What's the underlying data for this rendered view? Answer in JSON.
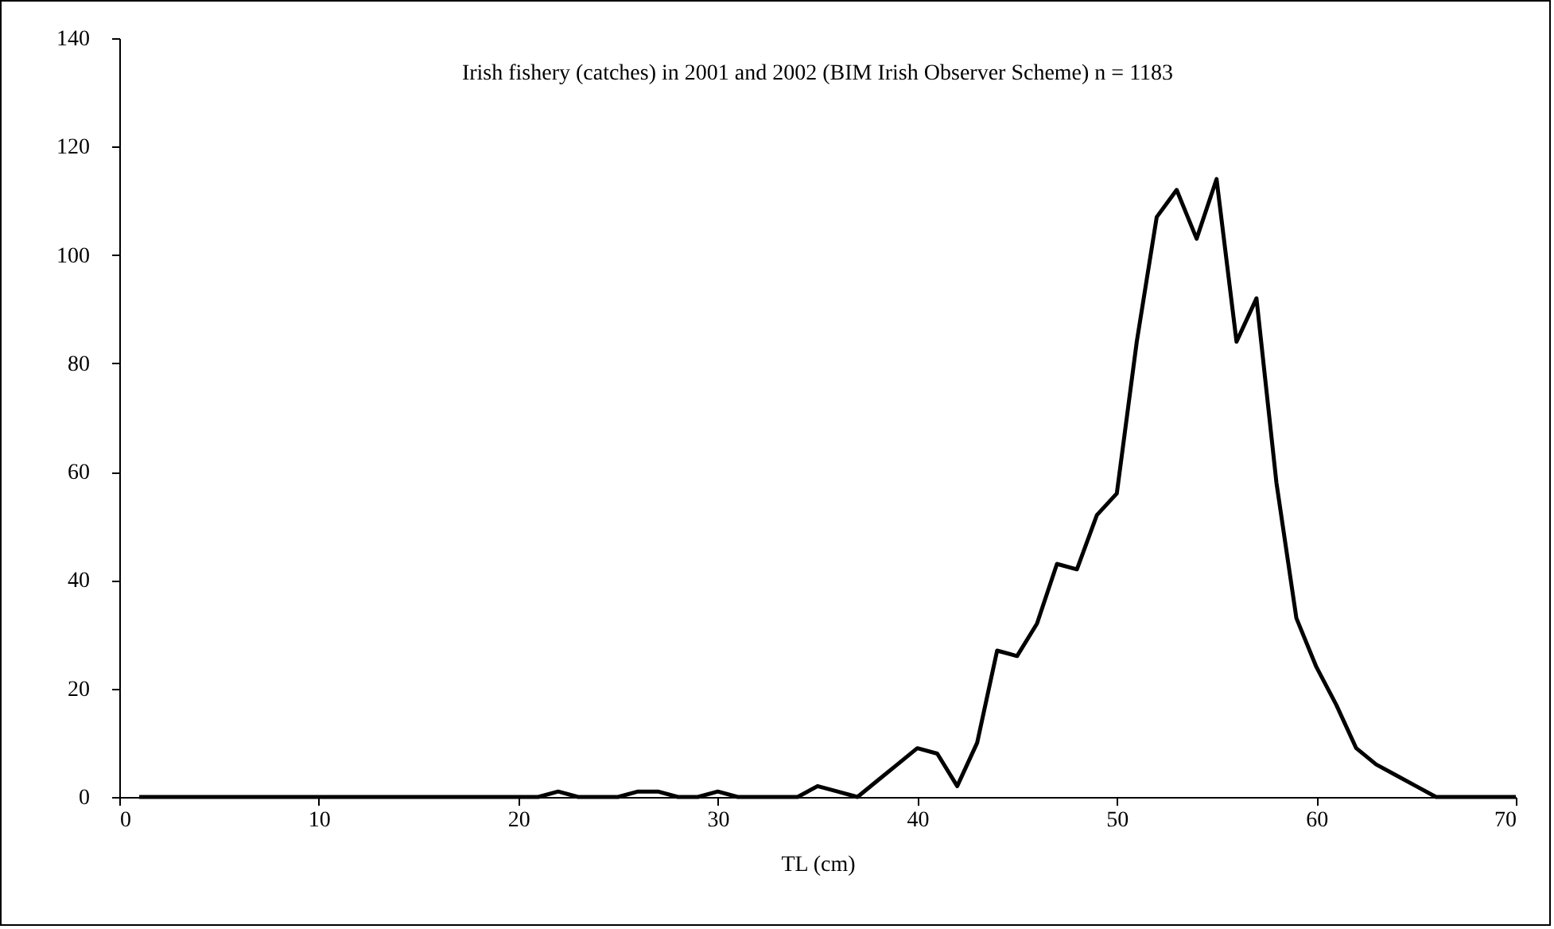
{
  "chart_data": {
    "type": "line",
    "title": "Irish fishery (catches)  in 2001 and 2002 (BIM Irish Observer Scheme) n = 1183",
    "xlabel": "TL (cm)",
    "x": [
      1,
      2,
      3,
      4,
      5,
      6,
      7,
      8,
      9,
      10,
      11,
      12,
      13,
      14,
      15,
      16,
      17,
      18,
      19,
      20,
      21,
      22,
      23,
      24,
      25,
      26,
      27,
      28,
      29,
      30,
      31,
      32,
      33,
      34,
      35,
      36,
      37,
      38,
      39,
      40,
      41,
      42,
      43,
      44,
      45,
      46,
      47,
      48,
      49,
      50,
      51,
      52,
      53,
      54,
      55,
      56,
      57,
      58,
      59,
      60,
      61,
      62,
      63,
      64,
      65,
      66,
      67,
      68,
      69,
      70
    ],
    "series": [
      {
        "color": "#000000",
        "values": [
          0,
          0,
          0,
          0,
          0,
          0,
          0,
          0,
          0,
          0,
          0,
          0,
          0,
          0,
          0,
          0,
          0,
          0,
          0,
          0,
          0,
          1,
          0,
          0,
          0,
          1,
          1,
          0,
          0,
          1,
          0,
          0,
          0,
          0,
          2,
          1,
          0,
          3,
          6,
          9,
          8,
          2,
          10,
          27,
          26,
          32,
          43,
          42,
          52,
          56,
          84,
          107,
          112,
          103,
          114,
          84,
          92,
          58,
          33,
          24,
          17,
          9,
          6,
          4,
          2,
          0,
          0,
          0,
          0,
          0
        ]
      }
    ],
    "xlim": [
      0,
      70
    ],
    "xticks": [
      0,
      10,
      20,
      30,
      40,
      50,
      60,
      70
    ],
    "ylim": [
      0,
      140
    ],
    "yticks": [
      0,
      20,
      40,
      60,
      80,
      100,
      120,
      140
    ],
    "grid": false,
    "marker": "none",
    "line_style": "solid"
  }
}
